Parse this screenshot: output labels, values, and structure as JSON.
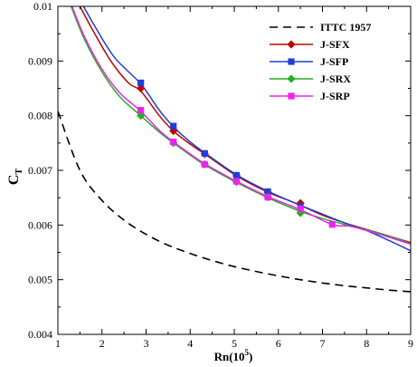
{
  "chart_data": {
    "type": "line",
    "xlabel_base": "Rn(10",
    "xlabel_sup": "5",
    "xlabel_tail": ")",
    "ylabel_main": "C",
    "ylabel_sub": "T",
    "xlim": [
      1,
      9
    ],
    "ylim": [
      0.004,
      0.01
    ],
    "xticks": [
      1,
      2,
      3,
      4,
      5,
      6,
      7,
      8,
      9
    ],
    "yticks": [
      0.004,
      0.005,
      0.006,
      0.007,
      0.008,
      0.009,
      0.01
    ],
    "ytick_labels": [
      "0.004",
      "0.005",
      "0.006",
      "0.007",
      "0.008",
      "0.009",
      "0.01"
    ],
    "legend_position": "top-right",
    "series": [
      {
        "name": "ITTC 1957",
        "color": "#000000",
        "dash": "dashed",
        "marker": "none",
        "points": [
          [
            1.0,
            0.00808
          ],
          [
            1.5,
            0.007
          ],
          [
            2.0,
            0.00645
          ],
          [
            2.5,
            0.00609
          ],
          [
            3.0,
            0.00583
          ],
          [
            3.5,
            0.00563
          ],
          [
            4.0,
            0.00548
          ],
          [
            4.5,
            0.00535
          ],
          [
            5.0,
            0.00524
          ],
          [
            5.5,
            0.00515
          ],
          [
            6.0,
            0.00507
          ],
          [
            6.5,
            0.005
          ],
          [
            7.0,
            0.00494
          ],
          [
            7.5,
            0.00489
          ],
          [
            8.0,
            0.00485
          ],
          [
            8.5,
            0.00481
          ],
          [
            9.0,
            0.00478
          ]
        ]
      },
      {
        "name": "J-SFX",
        "color": "#c00000",
        "marker": "diamond",
        "curve": [
          [
            1.5,
            0.01
          ],
          [
            1.8,
            0.00955
          ],
          [
            2.2,
            0.009
          ],
          [
            2.6,
            0.0086
          ],
          [
            2.88,
            0.00845
          ],
          [
            3.3,
            0.008
          ],
          [
            3.62,
            0.00772
          ],
          [
            4.0,
            0.00748
          ],
          [
            4.33,
            0.0073
          ],
          [
            5.05,
            0.0069
          ],
          [
            5.76,
            0.0066
          ],
          [
            6.2,
            0.00646
          ],
          [
            6.5,
            0.00636
          ],
          [
            7.0,
            0.00618
          ],
          [
            7.5,
            0.00604
          ],
          [
            8.0,
            0.00592
          ],
          [
            8.5,
            0.0058
          ],
          [
            9.0,
            0.00568
          ]
        ],
        "markers": [
          [
            2.88,
            0.0085
          ],
          [
            3.62,
            0.00772
          ],
          [
            4.33,
            0.0073
          ],
          [
            5.05,
            0.0069
          ],
          [
            5.76,
            0.0066
          ],
          [
            6.5,
            0.0064
          ]
        ]
      },
      {
        "name": "J-SFP",
        "color": "#1f3fd6",
        "marker": "square",
        "curve": [
          [
            1.58,
            0.01
          ],
          [
            1.9,
            0.00955
          ],
          [
            2.3,
            0.00905
          ],
          [
            2.88,
            0.00858
          ],
          [
            3.3,
            0.0081
          ],
          [
            3.62,
            0.0078
          ],
          [
            4.0,
            0.00752
          ],
          [
            4.33,
            0.00732
          ],
          [
            5.05,
            0.00692
          ],
          [
            5.76,
            0.00662
          ],
          [
            6.5,
            0.00636
          ],
          [
            7.0,
            0.0062
          ],
          [
            7.5,
            0.00604
          ],
          [
            8.0,
            0.0059
          ],
          [
            8.5,
            0.00572
          ],
          [
            9.0,
            0.00553
          ]
        ],
        "markers": [
          [
            2.88,
            0.0086
          ],
          [
            3.62,
            0.00781
          ],
          [
            4.33,
            0.00731
          ],
          [
            5.05,
            0.00691
          ],
          [
            5.76,
            0.00661
          ],
          [
            6.5,
            0.00634
          ]
        ]
      },
      {
        "name": "J-SRX",
        "color": "#22b020",
        "marker": "diamond",
        "curve": [
          [
            1.3,
            0.01
          ],
          [
            1.6,
            0.0094
          ],
          [
            2.0,
            0.0088
          ],
          [
            2.4,
            0.00835
          ],
          [
            2.88,
            0.008
          ],
          [
            3.3,
            0.0077
          ],
          [
            3.62,
            0.0075
          ],
          [
            4.0,
            0.00728
          ],
          [
            4.33,
            0.0071
          ],
          [
            5.05,
            0.00678
          ],
          [
            5.76,
            0.0065
          ],
          [
            6.5,
            0.00625
          ],
          [
            7.0,
            0.00612
          ],
          [
            7.5,
            0.00601
          ],
          [
            8.0,
            0.00591
          ],
          [
            8.5,
            0.0058
          ],
          [
            9.0,
            0.00566
          ]
        ],
        "markers": [
          [
            2.88,
            0.008
          ],
          [
            3.62,
            0.0075
          ],
          [
            4.33,
            0.00711
          ],
          [
            5.05,
            0.00679
          ],
          [
            5.76,
            0.00651
          ],
          [
            6.5,
            0.00622
          ]
        ]
      },
      {
        "name": "J-SRP",
        "color": "#ee22ee",
        "marker": "square",
        "curve": [
          [
            1.32,
            0.01
          ],
          [
            1.6,
            0.00945
          ],
          [
            2.0,
            0.00885
          ],
          [
            2.4,
            0.00842
          ],
          [
            2.88,
            0.00808
          ],
          [
            3.3,
            0.00773
          ],
          [
            3.62,
            0.00752
          ],
          [
            4.0,
            0.0073
          ],
          [
            4.33,
            0.00712
          ],
          [
            5.05,
            0.0068
          ],
          [
            5.76,
            0.00652
          ],
          [
            6.5,
            0.00628
          ],
          [
            7.22,
            0.00601
          ],
          [
            7.6,
            0.00598
          ],
          [
            8.0,
            0.0059
          ],
          [
            8.5,
            0.00578
          ],
          [
            9.0,
            0.00565
          ]
        ],
        "markers": [
          [
            2.88,
            0.0081
          ],
          [
            3.62,
            0.00752
          ],
          [
            4.33,
            0.00711
          ],
          [
            5.05,
            0.0068
          ],
          [
            5.76,
            0.00651
          ],
          [
            6.5,
            0.0063
          ],
          [
            7.22,
            0.00601
          ]
        ]
      }
    ]
  }
}
